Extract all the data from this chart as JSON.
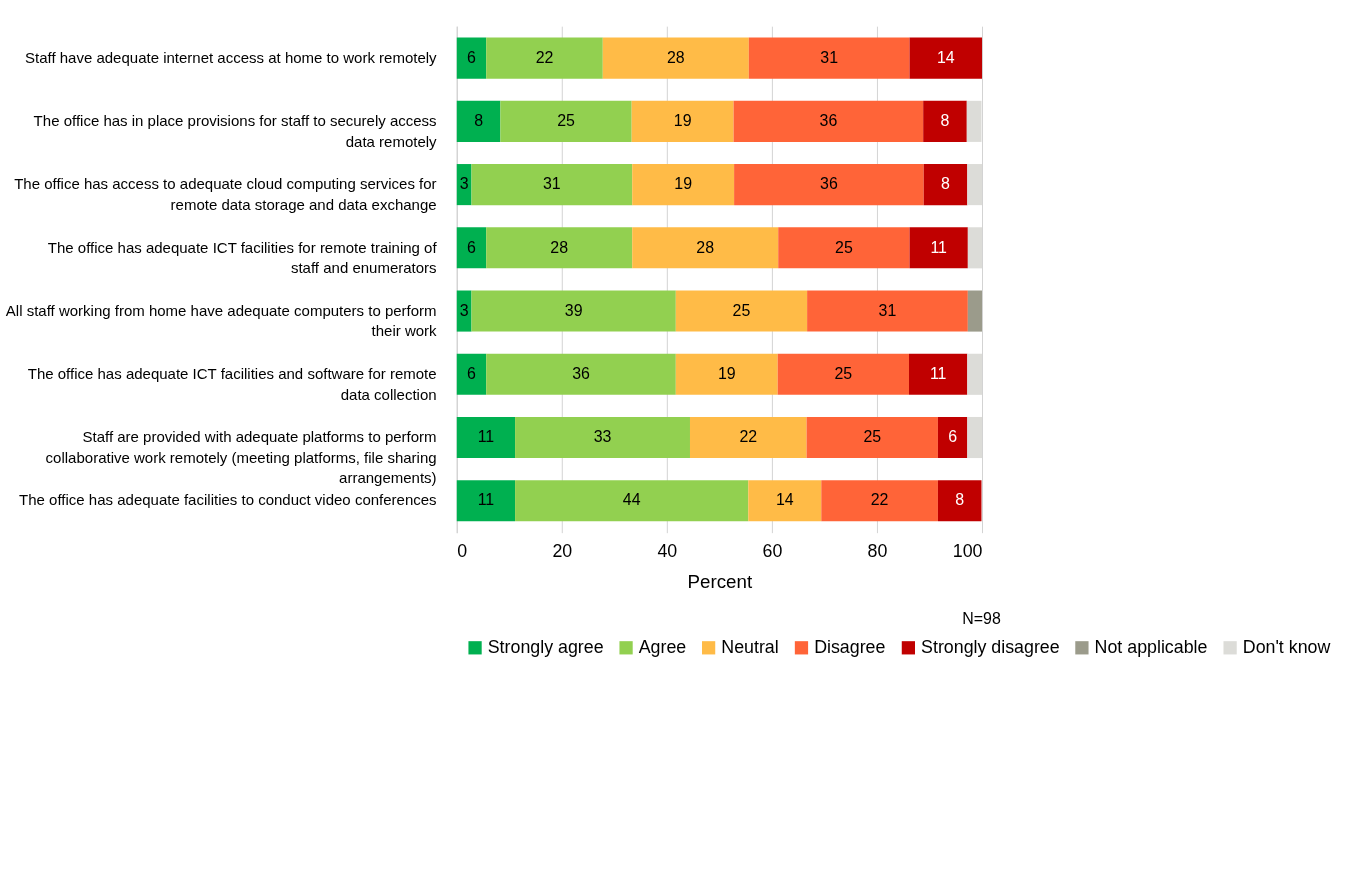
{
  "chart_data": {
    "type": "bar",
    "orientation": "horizontal",
    "stacked": true,
    "categories": [
      "Staff have adequate internet access at home to work remotely",
      "The office has in place provisions for staff to securely access data remotely",
      "The office has access to adequate cloud computing services for remote data storage and data exchange",
      "The office has adequate ICT facilities for remote training of staff and enumerators",
      "All staff working from home have adequate computers to perform their work",
      "The office has adequate ICT facilities and software for remote data collection",
      "Staff are provided with adequate platforms to perform collaborative work remotely (meeting platforms, file sharing arrangements)",
      "The office has adequate facilities to conduct video conferences"
    ],
    "series": [
      {
        "name": "Strongly agree",
        "color": "#00b050",
        "values": [
          5.6,
          8.3,
          2.8,
          5.6,
          2.8,
          5.6,
          11.1,
          11.1
        ],
        "value_labels": [
          "6",
          "8",
          "3",
          "6",
          "3",
          "6",
          "11",
          "11"
        ]
      },
      {
        "name": "Agree",
        "color": "#92d050",
        "values": [
          22.2,
          25.0,
          30.6,
          27.8,
          38.9,
          36.1,
          33.3,
          44.4
        ],
        "value_labels": [
          "22",
          "25",
          "31",
          "28",
          "39",
          "36",
          "33",
          "44"
        ]
      },
      {
        "name": "Neutral",
        "color": "#ffbb47",
        "values": [
          27.8,
          19.4,
          19.4,
          27.8,
          25.0,
          19.4,
          22.2,
          13.9
        ],
        "value_labels": [
          "28",
          "19",
          "19",
          "28",
          "25",
          "19",
          "22",
          "14"
        ]
      },
      {
        "name": "Disagree",
        "color": "#ff6438",
        "values": [
          30.6,
          36.1,
          36.1,
          25.0,
          30.6,
          25.0,
          25.0,
          22.2
        ],
        "value_labels": [
          "31",
          "36",
          "36",
          "25",
          "31",
          "25",
          "25",
          "22"
        ]
      },
      {
        "name": "Strongly disagree",
        "color": "#c00000",
        "values": [
          13.8,
          8.3,
          8.3,
          11.1,
          null,
          11.1,
          5.6,
          8.3
        ],
        "value_labels": [
          "14",
          "8",
          "8",
          "11",
          null,
          "11",
          "6",
          "8"
        ]
      },
      {
        "name": "Not applicable",
        "color": "#9b9b8b",
        "values": [
          null,
          null,
          null,
          null,
          2.7,
          null,
          null,
          null
        ]
      },
      {
        "name": "Don't know",
        "color": "#dcdcd8",
        "values": [
          null,
          2.8,
          2.8,
          2.7,
          null,
          2.8,
          2.8,
          null
        ]
      }
    ],
    "xlim": [
      0,
      100
    ],
    "xticks": [
      0,
      20,
      40,
      60,
      80,
      100
    ],
    "xlabel": "Percent",
    "grid": "x",
    "legend": "bottom",
    "annotations": [
      "N=98"
    ]
  }
}
